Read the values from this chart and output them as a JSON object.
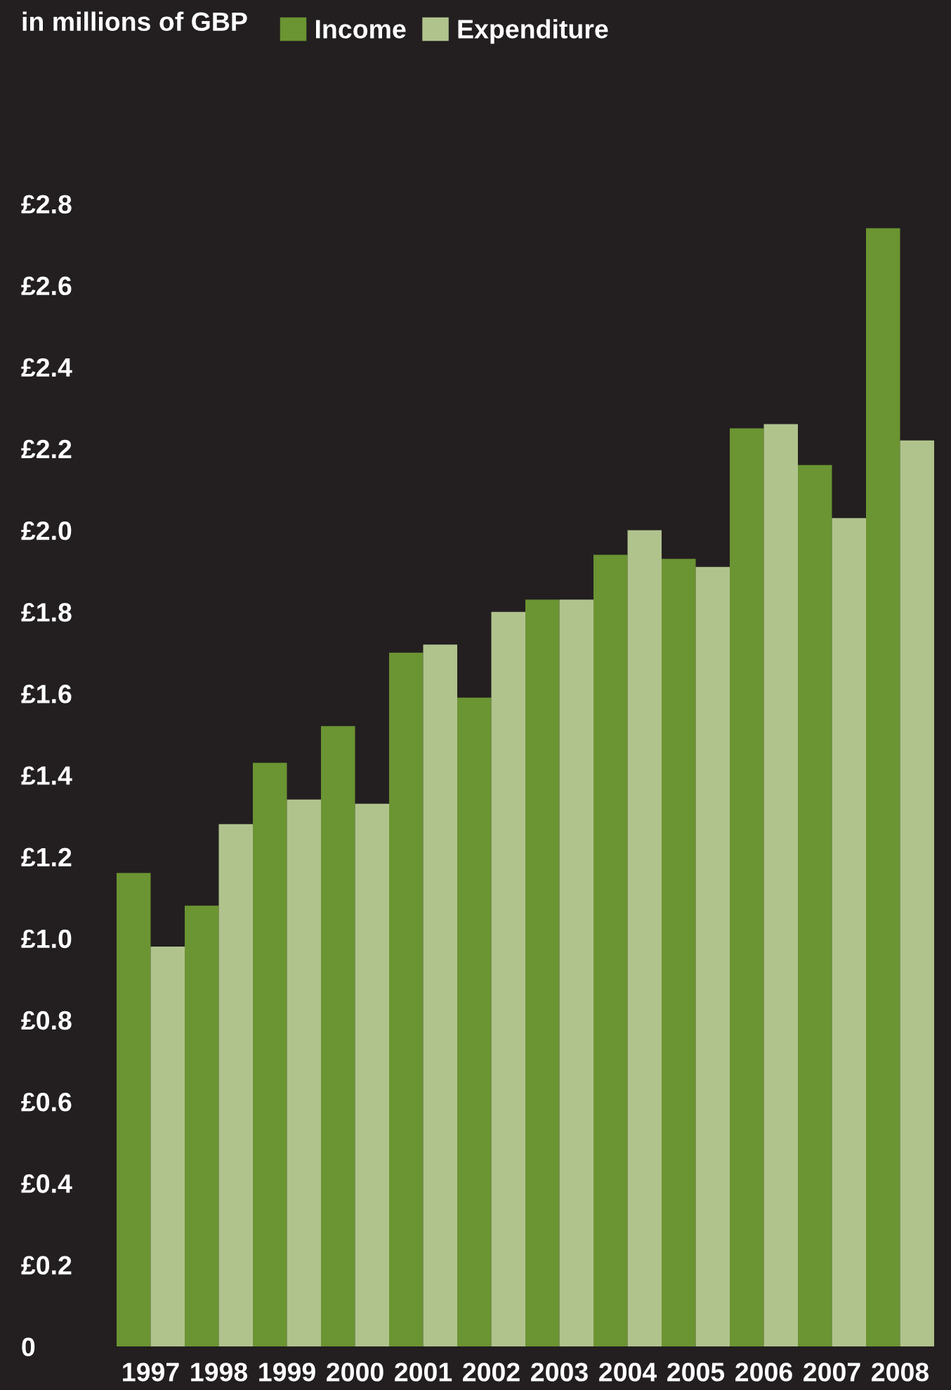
{
  "chart_data": {
    "type": "bar",
    "annotations": [
      "in millions of GBP"
    ],
    "categories": [
      "1997",
      "1998",
      "1999",
      "2000",
      "2001",
      "2002",
      "2003",
      "2004",
      "2005",
      "2006",
      "2007",
      "2008"
    ],
    "series": [
      {
        "name": "Income",
        "color": "#6b9432",
        "values": [
          1.16,
          1.08,
          1.43,
          1.52,
          1.7,
          1.59,
          1.83,
          1.94,
          1.93,
          2.25,
          2.16,
          2.74
        ]
      },
      {
        "name": "Expenditure",
        "color": "#b1c38d",
        "values": [
          0.98,
          1.28,
          1.34,
          1.33,
          1.72,
          1.8,
          1.83,
          2.0,
          1.91,
          2.26,
          2.03,
          2.22
        ]
      }
    ],
    "ylim": [
      0,
      2.8
    ],
    "yticks": [
      {
        "value": 0,
        "label": "0"
      },
      {
        "value": 0.2,
        "label": "£0.2"
      },
      {
        "value": 0.4,
        "label": "£0.4"
      },
      {
        "value": 0.6,
        "label": "£0.6"
      },
      {
        "value": 0.8,
        "label": "£0.8"
      },
      {
        "value": 1.0,
        "label": "£1.0"
      },
      {
        "value": 1.2,
        "label": "£1.2"
      },
      {
        "value": 1.4,
        "label": "£1.4"
      },
      {
        "value": 1.6,
        "label": "£1.6"
      },
      {
        "value": 1.8,
        "label": "£1.8"
      },
      {
        "value": 2.0,
        "label": "£2.0"
      },
      {
        "value": 2.2,
        "label": "£2.2"
      },
      {
        "value": 2.4,
        "label": "£2.4"
      },
      {
        "value": 2.6,
        "label": "£2.6"
      },
      {
        "value": 2.8,
        "label": "£2.8"
      }
    ],
    "grid": false,
    "legend": "top"
  }
}
